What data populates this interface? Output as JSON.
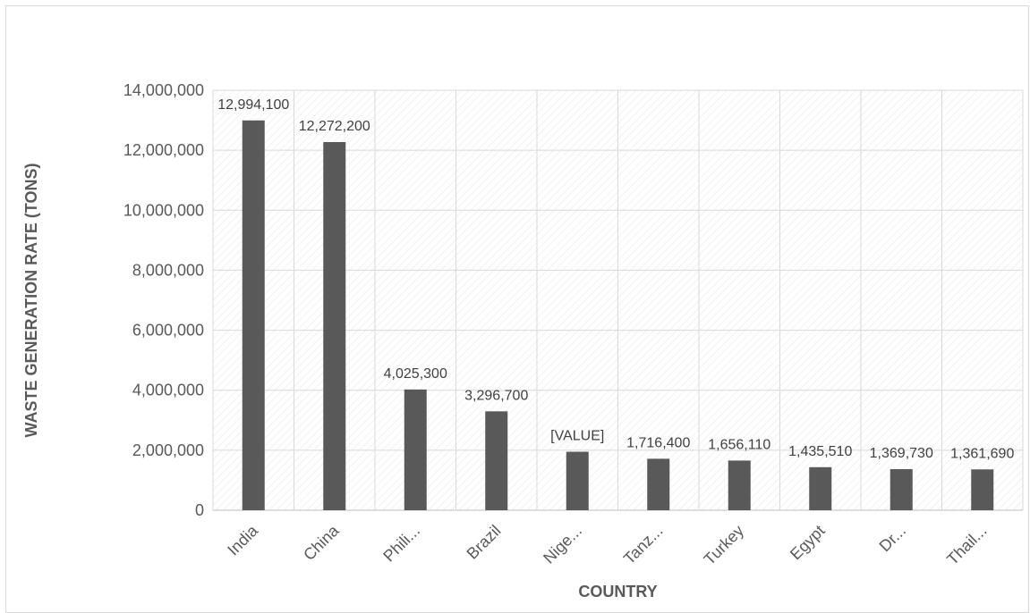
{
  "chart_data": {
    "type": "bar",
    "title": "",
    "xlabel": "COUNTRY",
    "ylabel": "WASTE GENERATION RATE (TONS)",
    "categories": [
      "India",
      "China",
      "Phili...",
      "Brazil",
      "Nige...",
      "Tanz...",
      "Turkey",
      "Egypt",
      "Dr...",
      "Thail..."
    ],
    "values": [
      12994100,
      12272200,
      4025300,
      3296700,
      1950000,
      1716400,
      1656110,
      1435510,
      1369730,
      1361690
    ],
    "data_labels": [
      "12,994,100",
      "12,272,200",
      "4,025,300",
      "3,296,700",
      "[VALUE]",
      "1,716,400",
      "1,656,110",
      "1,435,510",
      "1,369,730",
      "1,361,690"
    ],
    "ylim": [
      0,
      14000000
    ],
    "yticks": [
      0,
      2000000,
      4000000,
      6000000,
      8000000,
      10000000,
      12000000,
      14000000
    ],
    "ytick_labels": [
      "0",
      "2,000,000",
      "4,000,000",
      "6,000,000",
      "8,000,000",
      "10,000,000",
      "12,000,000",
      "14,000,000"
    ],
    "grid": true,
    "legend": "none",
    "bar_color": "#595959",
    "grid_color": "#d9d9d9"
  }
}
